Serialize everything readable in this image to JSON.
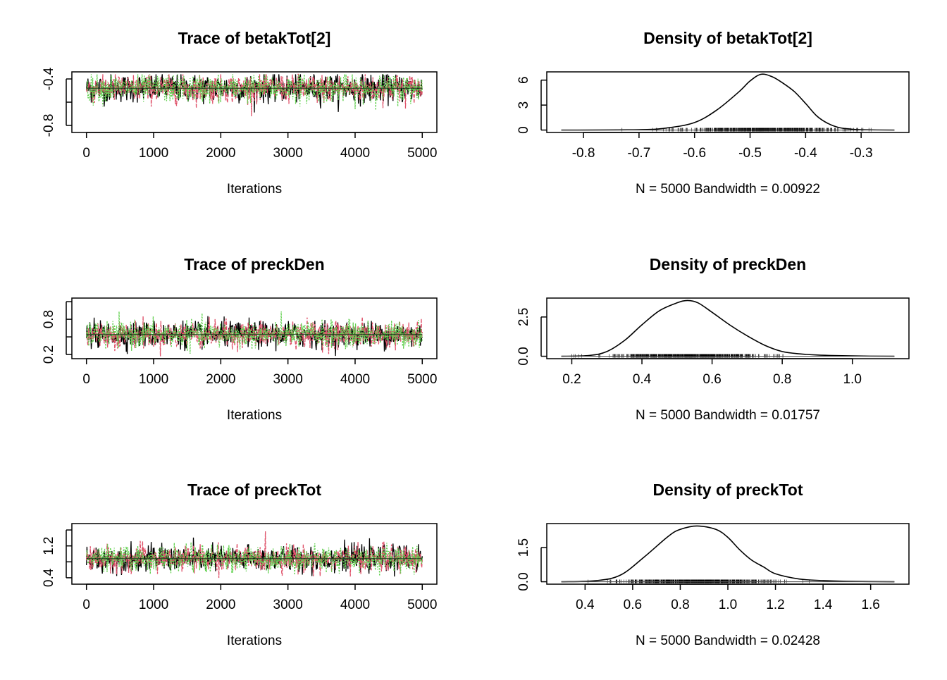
{
  "colors": {
    "chain1": "#000000",
    "chain2": "#DF536B",
    "chain3": "#61D04F"
  },
  "chart_data": [
    {
      "type": "line",
      "title": "Trace of betakTot[2]",
      "xlabel": "Iterations",
      "x_ticks": [
        "0",
        "1000",
        "2000",
        "3000",
        "4000",
        "5000"
      ],
      "y_ticks": [
        "-0.8",
        "-0.4"
      ],
      "xlim": [
        0,
        5000
      ],
      "ylim": [
        -0.84,
        -0.36
      ],
      "chains": 3,
      "series_mean": -0.48,
      "series_sd": 0.06
    },
    {
      "type": "area",
      "title": "Density of betakTot[2]",
      "xlabel": "N = 5000   Bandwidth = 0.00922",
      "x_ticks": [
        "-0.8",
        "-0.7",
        "-0.6",
        "-0.5",
        "-0.4",
        "-0.3"
      ],
      "y_ticks": [
        "0",
        "3",
        "6"
      ],
      "xlim": [
        -0.84,
        -0.24
      ],
      "ylim": [
        0,
        6.7
      ],
      "x": [
        -0.84,
        -0.7,
        -0.65,
        -0.6,
        -0.56,
        -0.52,
        -0.5,
        -0.48,
        -0.46,
        -0.44,
        -0.42,
        -0.4,
        -0.38,
        -0.36,
        -0.34,
        -0.32,
        -0.3,
        -0.24
      ],
      "y": [
        0,
        0.05,
        0.25,
        0.9,
        2.4,
        4.6,
        5.9,
        6.7,
        6.4,
        5.6,
        4.6,
        3.2,
        1.7,
        0.8,
        0.3,
        0.12,
        0.04,
        0
      ]
    },
    {
      "type": "line",
      "title": "Trace of preckDen",
      "xlabel": "Iterations",
      "x_ticks": [
        "0",
        "1000",
        "2000",
        "3000",
        "4000",
        "5000"
      ],
      "y_ticks": [
        "0.2",
        "0.8"
      ],
      "xlim": [
        0,
        5000
      ],
      "ylim": [
        0.17,
        1.12
      ],
      "chains": 3,
      "series_mean": 0.54,
      "series_sd": 0.11
    },
    {
      "type": "area",
      "title": "Density of preckDen",
      "xlabel": "N = 5000   Bandwidth = 0.01757",
      "x_ticks": [
        "0.2",
        "0.4",
        "0.6",
        "0.8",
        "1.0"
      ],
      "y_ticks": [
        "0.0",
        "2.5"
      ],
      "xlim": [
        0.17,
        1.12
      ],
      "ylim": [
        0,
        3.55
      ],
      "x": [
        0.17,
        0.25,
        0.3,
        0.35,
        0.4,
        0.45,
        0.5,
        0.53,
        0.56,
        0.6,
        0.65,
        0.7,
        0.75,
        0.8,
        0.85,
        0.9,
        1.0,
        1.12
      ],
      "y": [
        0,
        0.05,
        0.3,
        1.0,
        2.0,
        2.9,
        3.4,
        3.55,
        3.4,
        2.8,
        2.0,
        1.3,
        0.7,
        0.3,
        0.15,
        0.08,
        0.02,
        0
      ]
    },
    {
      "type": "line",
      "title": "Trace of preckTot",
      "xlabel": "Iterations",
      "x_ticks": [
        "0",
        "1000",
        "2000",
        "3000",
        "4000",
        "5000"
      ],
      "y_ticks": [
        "0.4",
        "1.2"
      ],
      "xlim": [
        0,
        5000
      ],
      "ylim": [
        0.3,
        1.7
      ],
      "chains": 3,
      "series_mean": 0.88,
      "series_sd": 0.16
    },
    {
      "type": "area",
      "title": "Density of preckTot",
      "xlabel": "N = 5000   Bandwidth = 0.02428",
      "x_ticks": [
        "0.4",
        "0.6",
        "0.8",
        "1.0",
        "1.2",
        "1.4",
        "1.6"
      ],
      "y_ticks": [
        "0.0",
        "1.5"
      ],
      "xlim": [
        0.3,
        1.7
      ],
      "ylim": [
        0,
        2.45
      ],
      "x": [
        0.3,
        0.45,
        0.55,
        0.65,
        0.75,
        0.8,
        0.87,
        0.95,
        1.0,
        1.05,
        1.1,
        1.15,
        1.2,
        1.3,
        1.4,
        1.5,
        1.7
      ],
      "y": [
        0,
        0.05,
        0.3,
        1.1,
        2.0,
        2.3,
        2.45,
        2.3,
        1.95,
        1.4,
        0.95,
        0.65,
        0.35,
        0.12,
        0.05,
        0.02,
        0
      ]
    }
  ]
}
